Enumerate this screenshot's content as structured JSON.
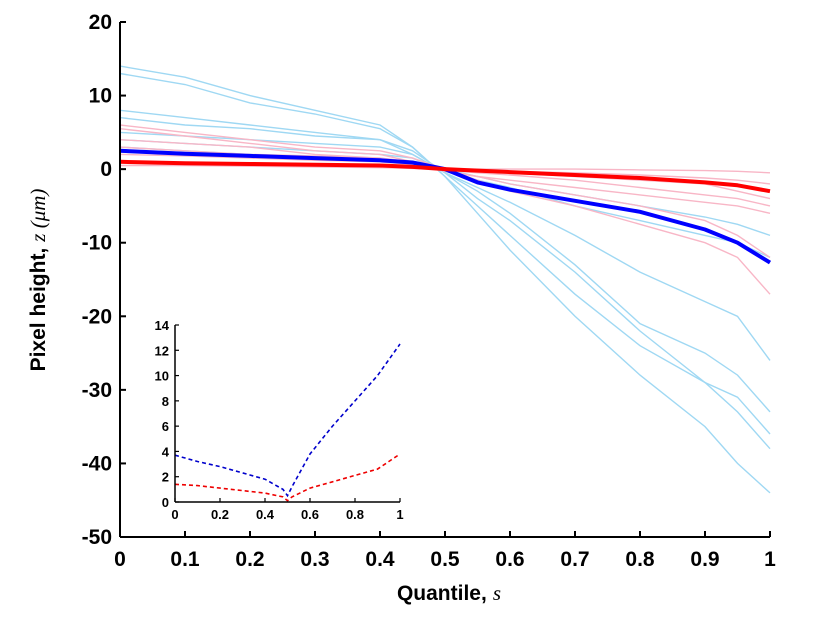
{
  "chart_data": [
    {
      "type": "line",
      "role": "main",
      "xlabel": {
        "text": "Quantile,",
        "symbol": "s"
      },
      "ylabel": {
        "text": "Pixel height,",
        "symbol": "z (μm)"
      },
      "xlim": [
        0,
        1
      ],
      "ylim": [
        -50,
        20
      ],
      "xticks": [
        0,
        0.1,
        0.2,
        0.3,
        0.4,
        0.5,
        0.6,
        0.7,
        0.8,
        0.9,
        1
      ],
      "xtick_labels": [
        "0",
        "0.1",
        "0.2",
        "0.3",
        "0.4",
        "0.5",
        "0.6",
        "0.7",
        "0.8",
        "0.9",
        "1"
      ],
      "yticks": [
        -50,
        -40,
        -30,
        -20,
        -10,
        0,
        10,
        20
      ],
      "ytick_labels": [
        "-50",
        "-40",
        "-30",
        "-20",
        "-10",
        "0",
        "10",
        "20"
      ],
      "x": [
        0,
        0.1,
        0.2,
        0.3,
        0.4,
        0.45,
        0.5,
        0.55,
        0.6,
        0.7,
        0.8,
        0.9,
        0.95,
        1
      ],
      "series_light_blue": [
        {
          "name": "blue-sample-1",
          "values": [
            14,
            12.5,
            10,
            8,
            6,
            3,
            -1,
            -6,
            -11,
            -20,
            -28,
            -35,
            -40,
            -44
          ]
        },
        {
          "name": "blue-sample-2",
          "values": [
            13,
            11.5,
            9,
            7.5,
            5.5,
            3,
            -1,
            -5,
            -9,
            -17,
            -24,
            -29,
            -33,
            -38
          ]
        },
        {
          "name": "blue-sample-3",
          "values": [
            8,
            7,
            6,
            5,
            4,
            2.5,
            -0.5,
            -4,
            -7,
            -14,
            -22,
            -29,
            -31,
            -36
          ]
        },
        {
          "name": "blue-sample-4",
          "values": [
            7,
            6,
            5.5,
            4.5,
            4,
            2,
            -0.5,
            -3,
            -6,
            -13,
            -21,
            -25,
            -28,
            -33
          ]
        },
        {
          "name": "blue-sample-5",
          "values": [
            5,
            4.5,
            4,
            3.5,
            3,
            2,
            -0.5,
            -2.5,
            -4.5,
            -9,
            -14,
            -18,
            -20,
            -26
          ]
        },
        {
          "name": "blue-sample-6",
          "values": [
            4,
            3.5,
            3,
            2.5,
            2,
            1.5,
            -0.3,
            -1.5,
            -2.5,
            -5,
            -7,
            -9,
            -10,
            -12
          ]
        },
        {
          "name": "blue-sample-7",
          "values": [
            3,
            2.5,
            2,
            1.5,
            1.2,
            1,
            0,
            -1,
            -2,
            -3.5,
            -5,
            -6.5,
            -7.5,
            -9
          ]
        }
      ],
      "series_pink": [
        {
          "name": "red-sample-1",
          "values": [
            6,
            5,
            4,
            3,
            2.5,
            1.5,
            0,
            -1.5,
            -3,
            -5,
            -7.5,
            -10,
            -12,
            -17
          ]
        },
        {
          "name": "red-sample-2",
          "values": [
            5.5,
            4.5,
            3.5,
            2.5,
            2,
            1,
            -0.3,
            -1,
            -2,
            -3.5,
            -5,
            -7,
            -9,
            -12
          ]
        },
        {
          "name": "red-sample-3",
          "values": [
            4,
            3.5,
            3,
            2,
            1.5,
            1,
            -0.2,
            -1,
            -1.5,
            -2.5,
            -3.5,
            -4.5,
            -5,
            -6
          ]
        },
        {
          "name": "red-sample-4",
          "values": [
            3,
            2.5,
            2,
            1.8,
            1.5,
            1,
            -0.1,
            -0.5,
            -0.8,
            -1.5,
            -2.5,
            -3.5,
            -4,
            -5
          ]
        },
        {
          "name": "red-sample-5",
          "values": [
            2.5,
            2,
            1.8,
            1.5,
            1.2,
            0.8,
            0,
            -0.3,
            -0.5,
            -1,
            -1.5,
            -2,
            -3,
            -4
          ]
        },
        {
          "name": "red-sample-6",
          "values": [
            2,
            1.8,
            1.5,
            1.2,
            1,
            0.6,
            0,
            -0.2,
            -0.3,
            -0.5,
            -0.8,
            -1.2,
            -1.5,
            -2
          ]
        },
        {
          "name": "red-sample-7",
          "values": [
            0.5,
            0.5,
            0.4,
            0.3,
            0.2,
            0.1,
            0,
            0,
            0,
            0,
            -0.1,
            -0.2,
            -0.3,
            -0.5
          ]
        }
      ],
      "mean_series": [
        {
          "name": "blue-mean",
          "color": "#0000ff",
          "values": [
            2.5,
            2.1,
            1.8,
            1.5,
            1.2,
            0.9,
            0,
            -1.8,
            -2.8,
            -4.3,
            -5.8,
            -8.2,
            -10,
            -12.7
          ]
        },
        {
          "name": "red-mean",
          "color": "#ff0000",
          "values": [
            1,
            0.8,
            0.7,
            0.6,
            0.5,
            0.3,
            0,
            -0.2,
            -0.4,
            -0.8,
            -1.2,
            -1.8,
            -2.2,
            -3
          ]
        }
      ]
    },
    {
      "type": "line",
      "role": "inset",
      "xlim": [
        0,
        1
      ],
      "ylim": [
        0,
        14
      ],
      "xticks": [
        0,
        0.2,
        0.4,
        0.6,
        0.8,
        1
      ],
      "xtick_labels": [
        "0",
        "0.2",
        "0.4",
        "0.6",
        "0.8",
        "1"
      ],
      "yticks": [
        0,
        2,
        4,
        6,
        8,
        10,
        12,
        14
      ],
      "ytick_labels": [
        "0",
        "2",
        "4",
        "6",
        "8",
        "10",
        "12",
        "14"
      ],
      "series": [
        {
          "name": "blue-dashed",
          "color": "#0000cc",
          "style": "dashed",
          "x": [
            0,
            0.1,
            0.2,
            0.3,
            0.4,
            0.48,
            0.5,
            0.52,
            0.6,
            0.7,
            0.8,
            0.9,
            1
          ],
          "values": [
            3.7,
            3.2,
            2.8,
            2.3,
            1.8,
            1.0,
            0.5,
            1.2,
            3.8,
            6.0,
            8.0,
            10.0,
            12.5
          ]
        },
        {
          "name": "red-dashed",
          "color": "#ee0000",
          "style": "dashed",
          "x": [
            0,
            0.1,
            0.2,
            0.3,
            0.4,
            0.48,
            0.5,
            0.52,
            0.6,
            0.7,
            0.8,
            0.9,
            1
          ],
          "values": [
            1.4,
            1.3,
            1.1,
            0.9,
            0.7,
            0.4,
            0.1,
            0.4,
            1.1,
            1.6,
            2.1,
            2.6,
            3.8
          ]
        }
      ]
    }
  ]
}
